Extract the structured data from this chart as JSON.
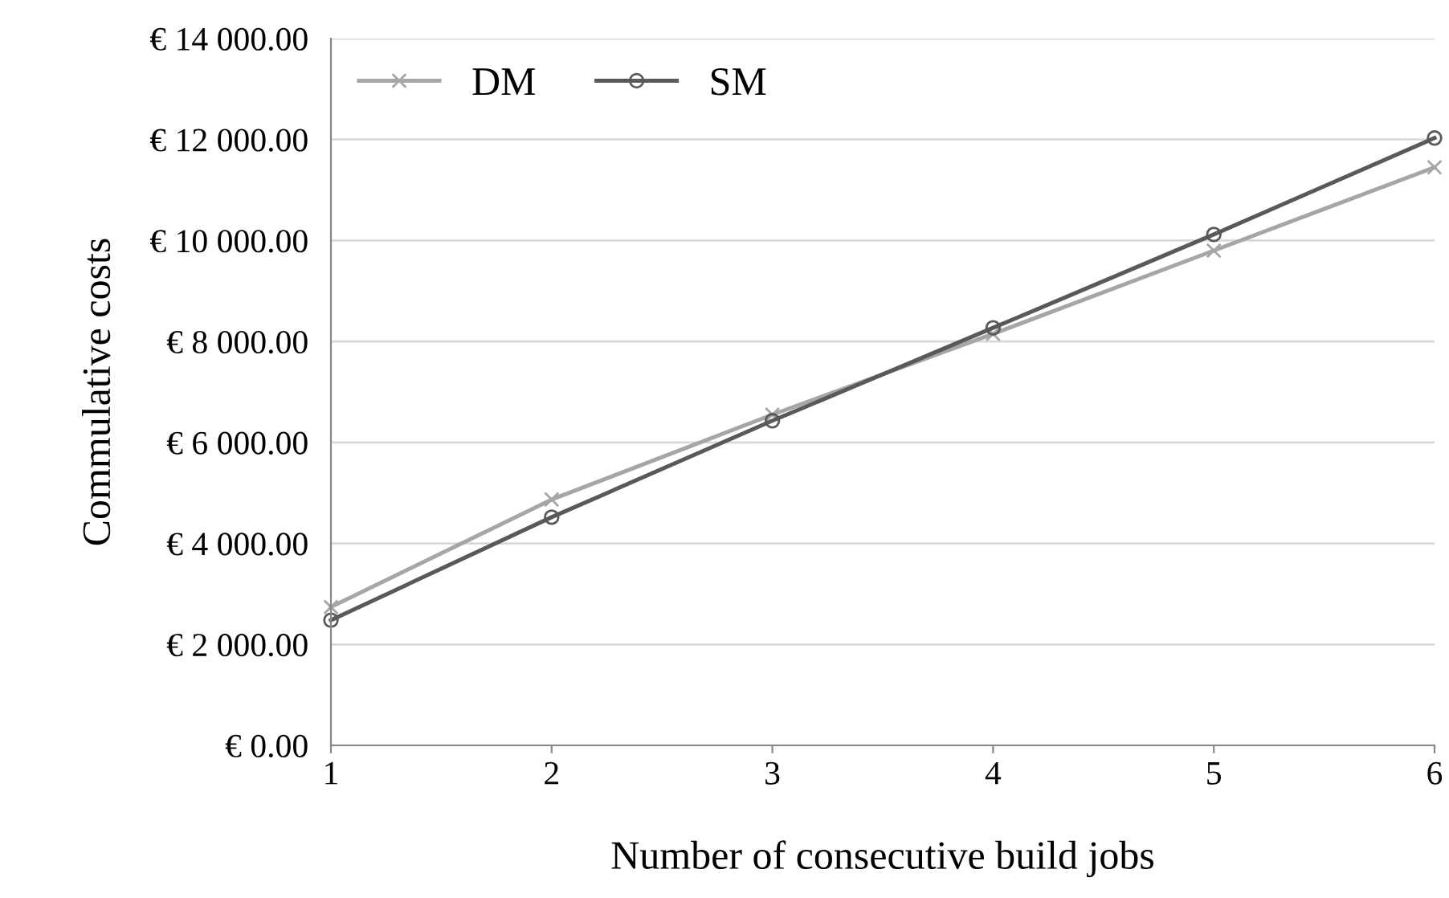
{
  "chart_data": {
    "type": "line",
    "xlabel": "Number of consecutive build jobs",
    "ylabel": "Commulative costs",
    "x": [
      1,
      2,
      3,
      4,
      5,
      6
    ],
    "series": [
      {
        "name": "DM",
        "color": "#a6a6a6",
        "marker": "cross",
        "values": [
          2740,
          4870,
          6550,
          8150,
          9800,
          11450
        ]
      },
      {
        "name": "SM",
        "color": "#595959",
        "marker": "circle",
        "values": [
          2480,
          4520,
          6430,
          8270,
          10120,
          12030
        ]
      }
    ],
    "xlim": [
      1,
      6
    ],
    "xticks": [
      1,
      2,
      3,
      4,
      5,
      6
    ],
    "ylim": [
      0,
      14000
    ],
    "yticks": [
      {
        "value": 0,
        "label": "€ 0.00"
      },
      {
        "value": 2000,
        "label": "€ 2 000.00"
      },
      {
        "value": 4000,
        "label": "€ 4 000.00"
      },
      {
        "value": 6000,
        "label": "€ 6 000.00"
      },
      {
        "value": 8000,
        "label": "€ 8 000.00"
      },
      {
        "value": 10000,
        "label": "€ 10 000.00"
      },
      {
        "value": 12000,
        "label": "€ 12 000.00"
      },
      {
        "value": 14000,
        "label": "€ 14 000.00"
      }
    ],
    "grid": "y",
    "legend": "top left",
    "line_style": "solid"
  }
}
